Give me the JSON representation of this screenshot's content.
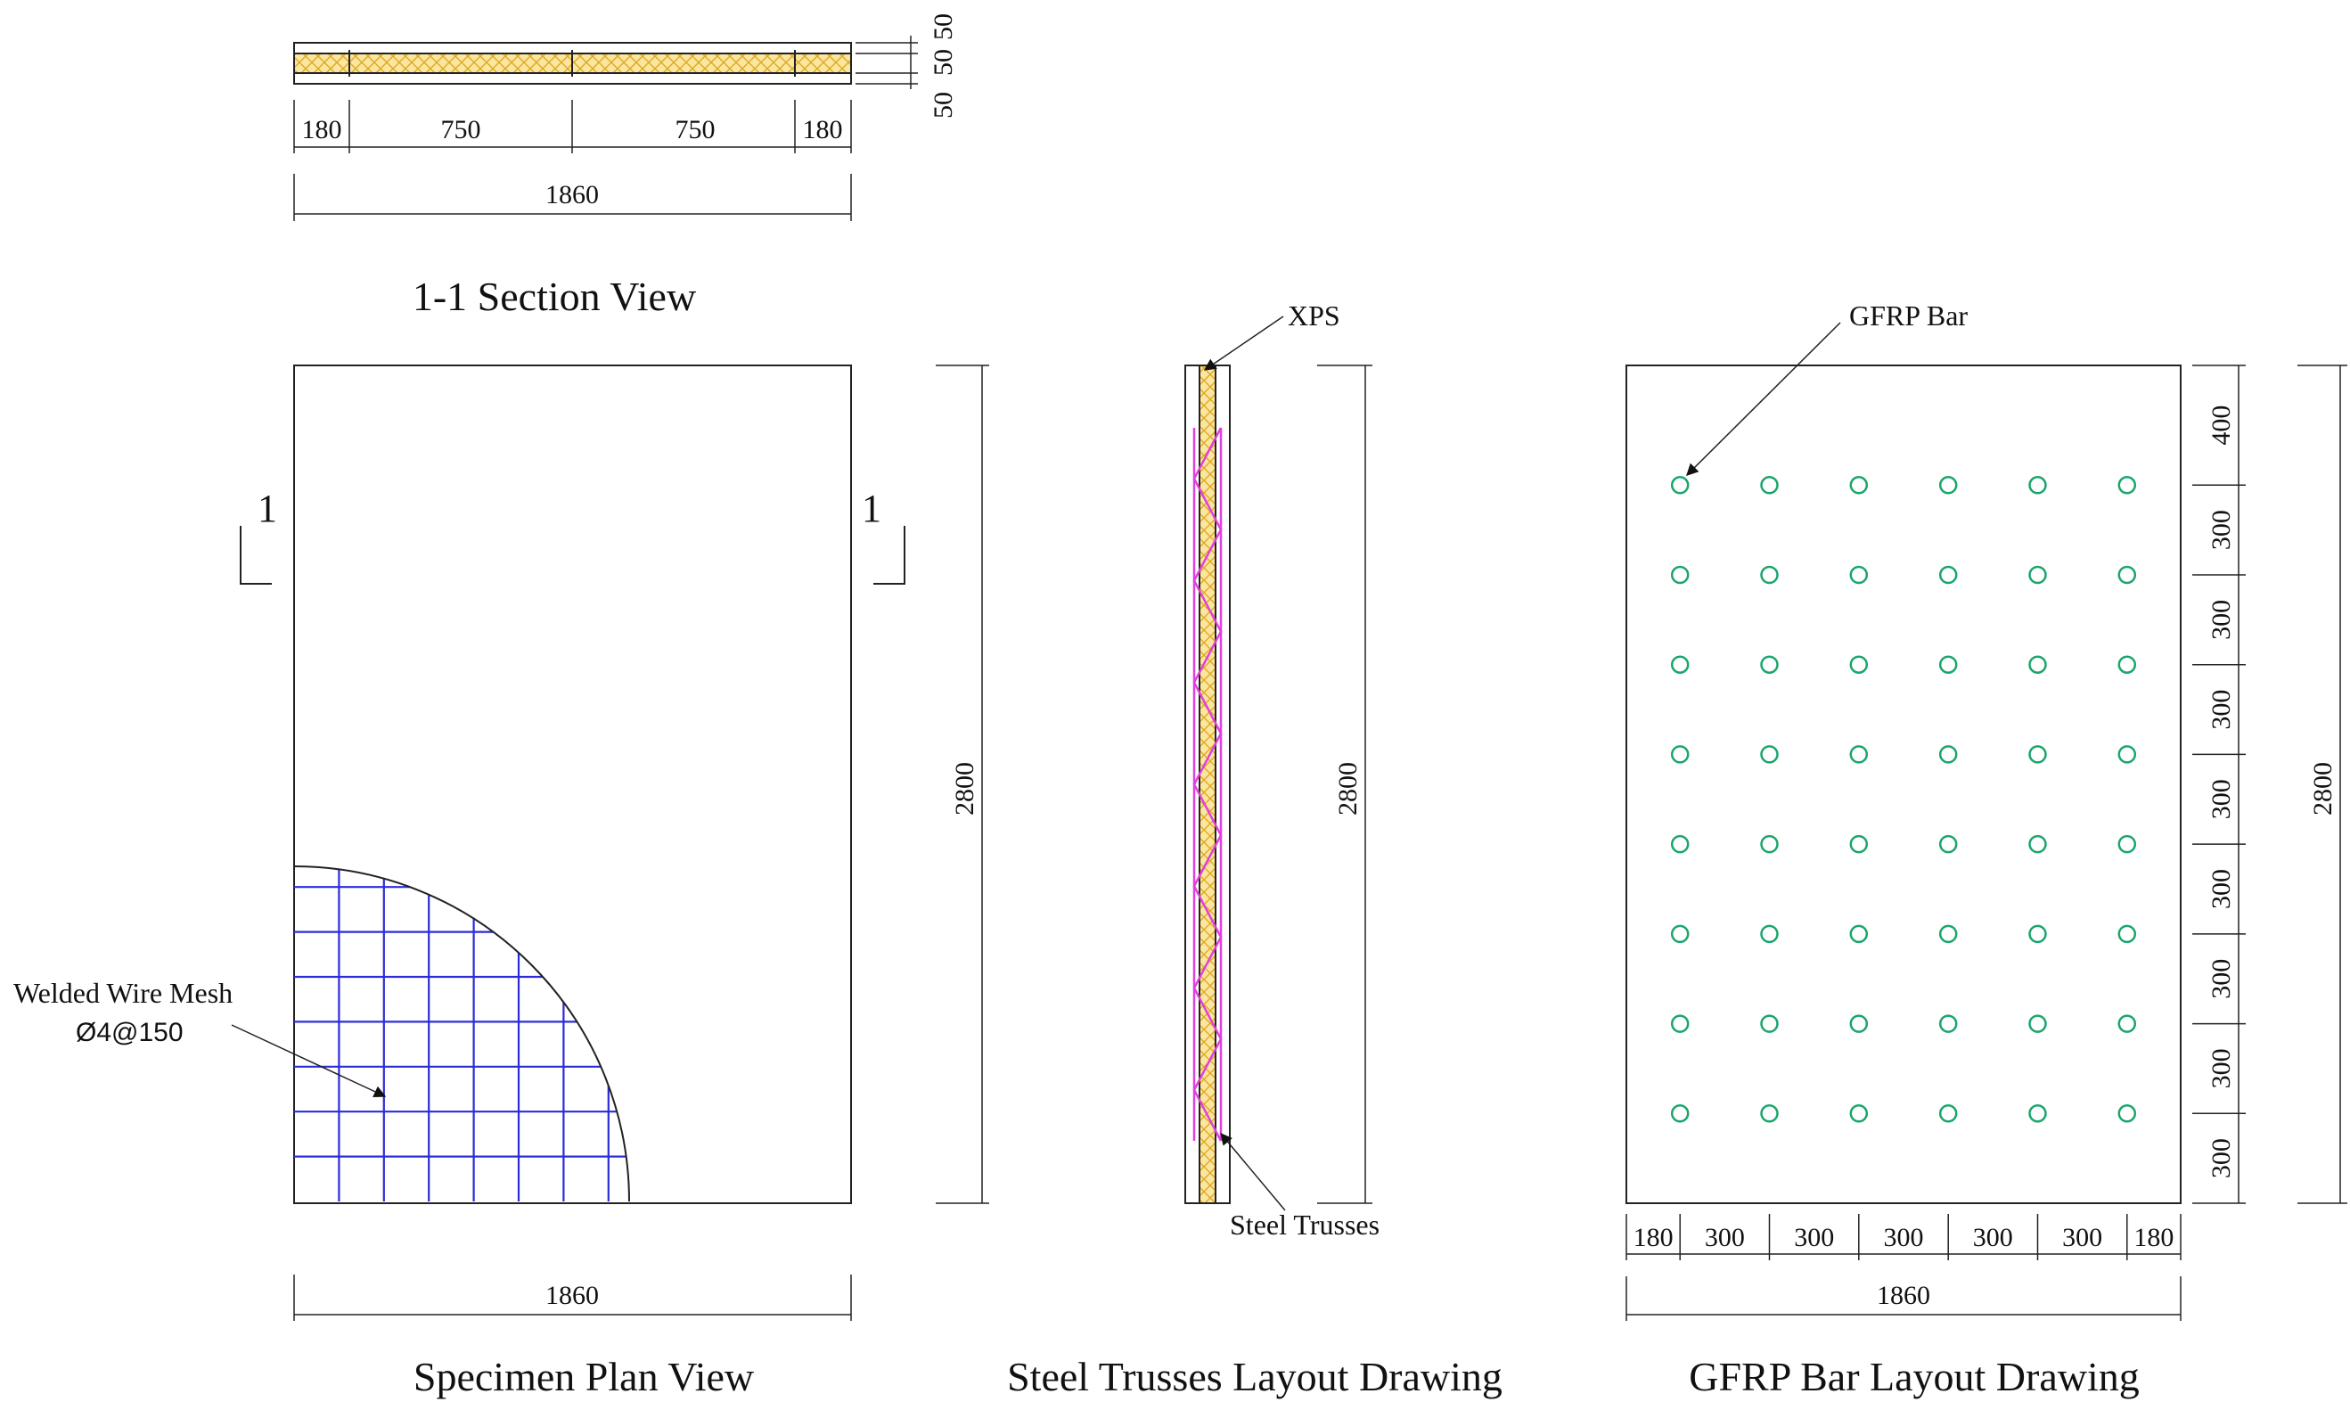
{
  "colors": {
    "line": "#222222",
    "mesh": "#2b2bd9",
    "truss": "#e040e0",
    "gfrp": "#1aa66a",
    "xps": "#f5c842"
  },
  "section_view": {
    "title": "1-1 Section View",
    "segment_dims": [
      "180",
      "750",
      "750",
      "180"
    ],
    "total_dim": "1860",
    "thickness_dims": [
      "50",
      "50",
      "50"
    ]
  },
  "plan_view": {
    "title": "Specimen Plan View",
    "section_mark_left": "1",
    "section_mark_right": "1",
    "mesh_label_line1": "Welded Wire Mesh",
    "mesh_label_line2": "Ø4@150",
    "width_dim": "1860",
    "height_dim": "2800"
  },
  "truss_view": {
    "title": "Steel Trusses Layout Drawing",
    "xps_label": "XPS",
    "truss_label": "Steel Trusses",
    "height_dim": "2800"
  },
  "gfrp_view": {
    "title": "GFRP Bar Layout Drawing",
    "bar_label": "GFRP Bar",
    "bottom_dims": [
      "180",
      "300",
      "300",
      "300",
      "300",
      "300",
      "180"
    ],
    "total_width_dim": "1860",
    "right_dims": [
      "400",
      "300",
      "300",
      "300",
      "300",
      "300",
      "300",
      "300",
      "300"
    ],
    "height_dim": "2800",
    "rows": 8,
    "cols": 6
  }
}
